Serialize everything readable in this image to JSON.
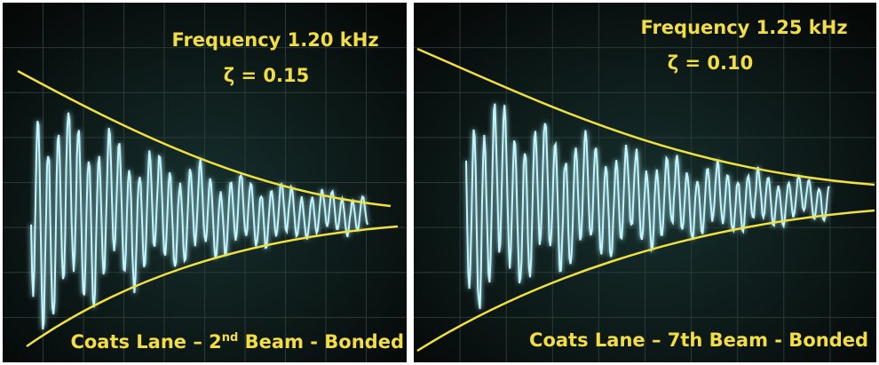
{
  "panels": [
    {
      "frequency": "Frequency  1.20 kHz",
      "damping": "ζ = 0.15",
      "caption": {
        "prefix": "Coats Lane – 2",
        "superscript": "nd",
        "suffix": " Beam - Bonded"
      }
    },
    {
      "frequency": "Frequency  1.25 kHz",
      "damping": "ζ = 0.10",
      "caption": {
        "prefix": "Coats Lane – 7th Beam - Bonded"
      }
    }
  ]
}
